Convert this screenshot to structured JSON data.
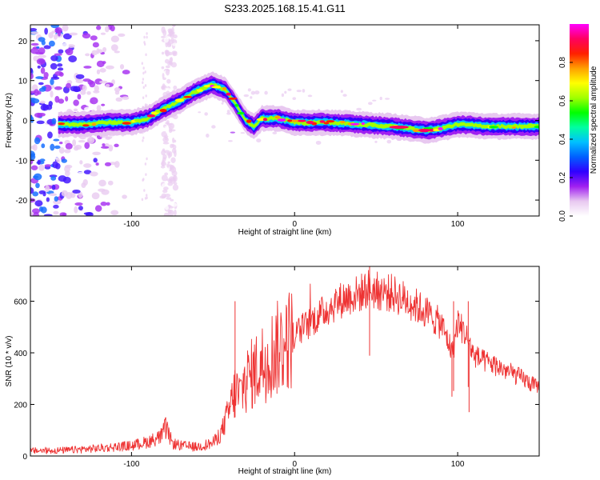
{
  "title": "S233.2025.168.15.41.G11",
  "chart_data": [
    {
      "type": "heatmap",
      "xlabel": "Height of straight line (km)",
      "ylabel": "Frequency (Hz)",
      "xlim": [
        -162,
        150
      ],
      "ylim": [
        -24,
        24
      ],
      "xticks": [
        -100,
        0,
        100
      ],
      "yticks": [
        -20,
        -10,
        0,
        10,
        20
      ],
      "colorbar": {
        "label": "Normalized spectral amplitude",
        "range": [
          0.0,
          1.0
        ],
        "ticks": [
          0.0,
          0.2,
          0.4,
          0.6,
          0.8
        ],
        "colors": [
          "#ffffff",
          "#e8c8f0",
          "#a020f0",
          "#3000ff",
          "#0060ff",
          "#00c0ff",
          "#00ffa0",
          "#00ff00",
          "#a0ff00",
          "#ffff00",
          "#ffa000",
          "#ff2000",
          "#ff0060",
          "#ff00ff"
        ]
      },
      "ridge": {
        "x": [
          -145,
          -130,
          -115,
          -100,
          -90,
          -80,
          -70,
          -60,
          -50,
          -42,
          -36,
          -30,
          -25,
          -20,
          -10,
          0,
          20,
          40,
          60,
          80,
          90,
          100,
          120,
          150
        ],
        "y": [
          -1,
          -1,
          -0.5,
          -0.5,
          0.5,
          3,
          5,
          7.5,
          9,
          7.5,
          4,
          0,
          -1.5,
          0.5,
          0.5,
          -0.5,
          -0.5,
          -1,
          -1.5,
          -2.5,
          -2,
          -1,
          -1.5,
          -1.5
        ]
      }
    },
    {
      "type": "line",
      "xlabel": "Height of straight line (km)",
      "ylabel": "SNR (10 * v/v)",
      "xlim": [
        -162,
        150
      ],
      "ylim": [
        0,
        735
      ],
      "xticks": [
        -100,
        0,
        100
      ],
      "yticks": [
        0,
        200,
        400,
        600
      ],
      "series": [
        {
          "color": "#ee3333",
          "x": [
            -162,
            -140,
            -120,
            -100,
            -90,
            -82,
            -79,
            -75,
            -70,
            -60,
            -50,
            -45,
            -40,
            -36,
            -34,
            -30,
            -20,
            -10,
            0,
            10,
            20,
            30,
            40,
            45,
            50,
            60,
            70,
            80,
            90,
            97,
            100,
            105,
            110,
            115,
            120,
            130,
            140,
            150
          ],
          "y": [
            20,
            22,
            30,
            40,
            55,
            75,
            110,
            50,
            40,
            35,
            50,
            90,
            180,
            260,
            230,
            290,
            360,
            420,
            470,
            520,
            570,
            610,
            630,
            650,
            640,
            630,
            600,
            560,
            510,
            400,
            520,
            470,
            390,
            370,
            360,
            330,
            300,
            260
          ]
        }
      ]
    }
  ]
}
